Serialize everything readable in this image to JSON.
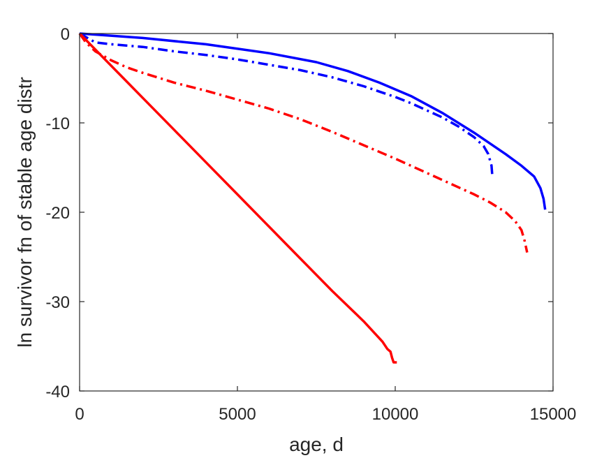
{
  "chart_data": {
    "type": "line",
    "title": "",
    "xlabel": "age, d",
    "ylabel": "ln survivor fn of stable age distr",
    "xlim": [
      0,
      15000
    ],
    "ylim": [
      -40,
      0
    ],
    "xticks": [
      "0",
      "5000",
      "10000",
      "15000"
    ],
    "xtick_values": [
      0,
      5000,
      10000,
      15000
    ],
    "yticks": [
      "0",
      "-10",
      "-20",
      "-30",
      "-40"
    ],
    "ytick_values": [
      0,
      -10,
      -20,
      -30,
      -40
    ],
    "grid": false,
    "legend": "none",
    "series": [
      {
        "color": "#0000ff",
        "dash": "solid",
        "points": [
          [
            0,
            0
          ],
          [
            2000,
            -0.5
          ],
          [
            4000,
            -1.2
          ],
          [
            6000,
            -2.2
          ],
          [
            7500,
            -3.2
          ],
          [
            8500,
            -4.2
          ],
          [
            9500,
            -5.5
          ],
          [
            10500,
            -7
          ],
          [
            11500,
            -8.9
          ],
          [
            12500,
            -11.1
          ],
          [
            13500,
            -13.5
          ],
          [
            14000,
            -14.8
          ],
          [
            14400,
            -16
          ],
          [
            14600,
            -17.3
          ],
          [
            14700,
            -18.5
          ],
          [
            14750,
            -19.7
          ]
        ]
      },
      {
        "color": "#0000ff",
        "dash": "dashdot",
        "points": [
          [
            0,
            0
          ],
          [
            500,
            -1
          ],
          [
            1000,
            -1.2
          ],
          [
            2000,
            -1.5
          ],
          [
            3000,
            -2
          ],
          [
            4000,
            -2.4
          ],
          [
            5000,
            -2.9
          ],
          [
            6000,
            -3.5
          ],
          [
            7000,
            -4.1
          ],
          [
            8000,
            -4.9
          ],
          [
            9000,
            -5.9
          ],
          [
            10000,
            -7.1
          ],
          [
            10500,
            -7.8
          ],
          [
            11000,
            -8.6
          ],
          [
            11500,
            -9.4
          ],
          [
            12000,
            -10.4
          ],
          [
            12500,
            -11.6
          ],
          [
            12800,
            -12.6
          ],
          [
            12950,
            -13.5
          ],
          [
            13050,
            -14.8
          ],
          [
            13080,
            -16.1
          ]
        ]
      },
      {
        "color": "#ff0000",
        "dash": "dashdot",
        "points": [
          [
            0,
            0
          ],
          [
            200,
            -1
          ],
          [
            500,
            -2
          ],
          [
            1000,
            -3
          ],
          [
            1500,
            -3.8
          ],
          [
            2000,
            -4.4
          ],
          [
            3000,
            -5.5
          ],
          [
            4000,
            -6.4
          ],
          [
            5000,
            -7.4
          ],
          [
            6000,
            -8.4
          ],
          [
            7000,
            -9.6
          ],
          [
            8000,
            -11
          ],
          [
            9000,
            -12.5
          ],
          [
            10000,
            -14
          ],
          [
            11000,
            -15.6
          ],
          [
            12000,
            -17.2
          ],
          [
            12500,
            -18
          ],
          [
            13000,
            -18.9
          ],
          [
            13500,
            -20
          ],
          [
            13800,
            -21
          ],
          [
            14000,
            -22
          ],
          [
            14100,
            -23.2
          ],
          [
            14180,
            -24.5
          ]
        ]
      },
      {
        "color": "#ff0000",
        "dash": "solid",
        "points": [
          [
            0,
            0
          ],
          [
            1000,
            -3.6
          ],
          [
            2000,
            -7.2
          ],
          [
            3000,
            -10.8
          ],
          [
            4000,
            -14.4
          ],
          [
            5000,
            -18
          ],
          [
            6000,
            -21.6
          ],
          [
            7000,
            -25.2
          ],
          [
            8000,
            -28.8
          ],
          [
            9000,
            -32.2
          ],
          [
            9600,
            -34.5
          ],
          [
            9750,
            -35.3
          ],
          [
            9850,
            -35.6
          ],
          [
            9900,
            -36.3
          ],
          [
            9950,
            -36.8
          ],
          [
            10050,
            -36.8
          ]
        ]
      }
    ]
  }
}
